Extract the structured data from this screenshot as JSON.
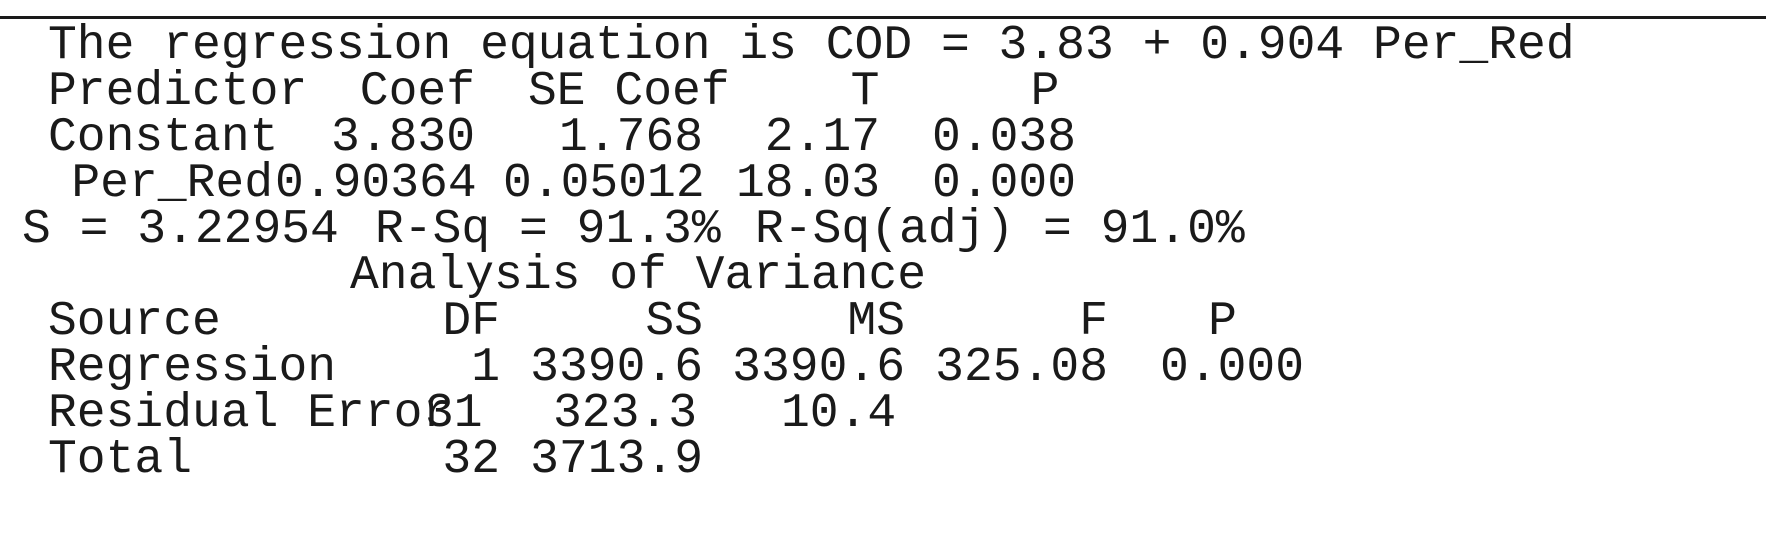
{
  "equation": "The regression equation is COD = 3.83 + 0.904 Per_Red",
  "coef_table": {
    "headers": [
      "Predictor",
      "Coef",
      "SE Coef",
      "T",
      "P"
    ],
    "rows": [
      [
        "Constant",
        "3.830",
        "1.768",
        "2.17",
        "0.038"
      ],
      [
        "Per_Red",
        "0.90364",
        "0.05012",
        "18.03",
        "0.000"
      ]
    ]
  },
  "summary": {
    "s": "S = 3.22954",
    "rsq": "R-Sq = 91.3%",
    "rsq_adj": "R-Sq(adj) = 91.0%"
  },
  "anova": {
    "title": "Analysis of Variance",
    "headers": [
      "Source",
      "DF",
      "SS",
      "MS",
      "F",
      "P"
    ],
    "rows": [
      [
        "Regression",
        "1",
        "3390.6",
        "3390.6",
        "325.08",
        "0.000"
      ],
      [
        "Residual Error",
        "31",
        "323.3",
        "10.4",
        "",
        ""
      ],
      [
        "Total",
        "32",
        "3713.9",
        "",
        "",
        ""
      ]
    ]
  }
}
